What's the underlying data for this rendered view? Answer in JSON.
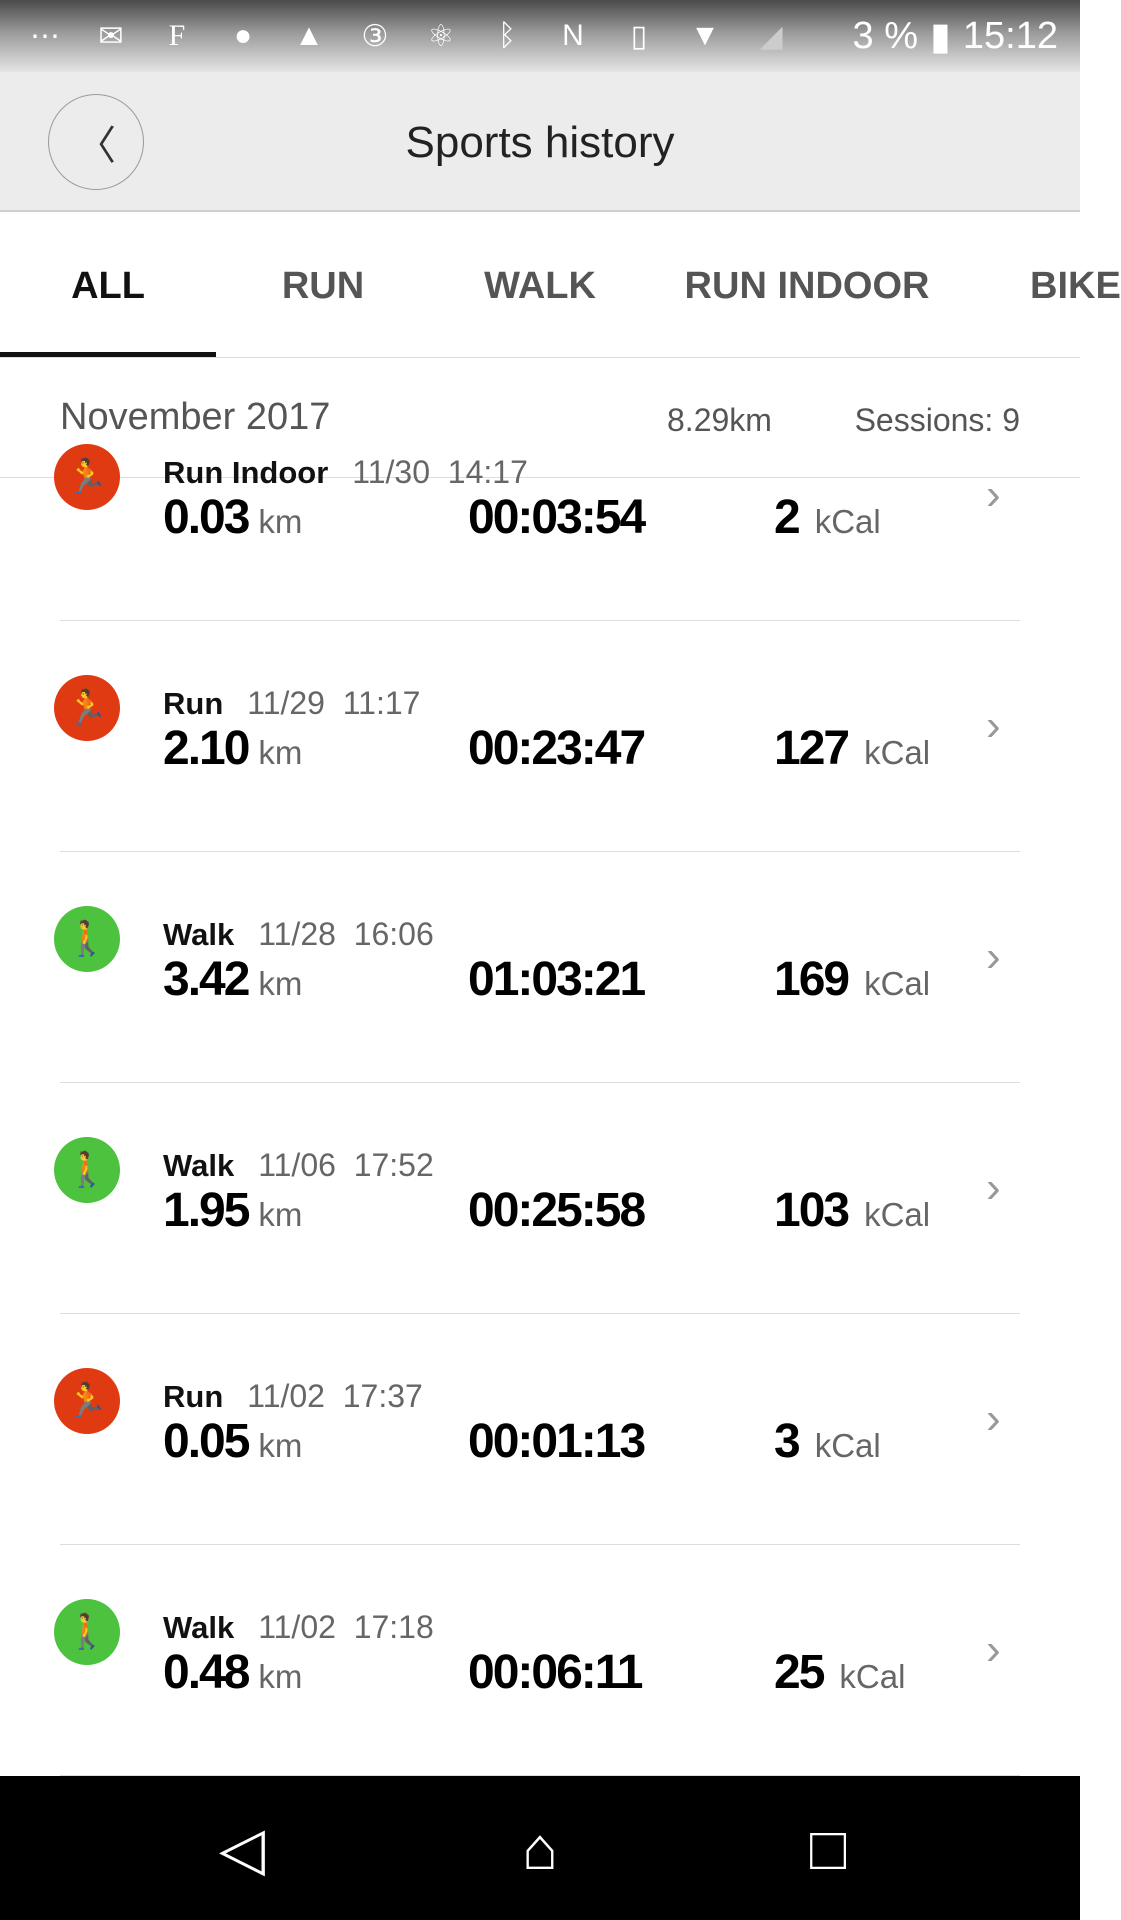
{
  "status_bar": {
    "icons": [
      "messages-icon",
      "mail-icon",
      "f-app-icon",
      "chat-icon",
      "gallery-icon",
      "notification-3-icon",
      "atom-icon",
      "bluetooth-icon",
      "nfc-icon",
      "vibrate-icon",
      "wifi-icon",
      "signal-icon"
    ],
    "battery": "3 %",
    "time": "15:12"
  },
  "header": {
    "title": "Sports history"
  },
  "tabs": [
    "ALL",
    "RUN",
    "WALK",
    "RUN INDOOR",
    "BIKE"
  ],
  "month": {
    "label": "November 2017",
    "distance": "8.29km",
    "sessions": "Sessions: 9"
  },
  "colors": {
    "run": "#e03a12",
    "walk": "#4cc23e"
  },
  "rows": [
    {
      "type": "Run Indoor",
      "date": "11/30",
      "time": "14:17",
      "distance": "0.03",
      "distance_unit": "km",
      "duration": "00:03:54",
      "kcal": "2",
      "kcal_unit": "kCal",
      "icon": "treadmill-icon"
    },
    {
      "type": "Run",
      "date": "11/29",
      "time": "11:17",
      "distance": "2.10",
      "distance_unit": "km",
      "duration": "00:23:47",
      "kcal": "127",
      "kcal_unit": "kCal",
      "icon": "run-icon"
    },
    {
      "type": "Walk",
      "date": "11/28",
      "time": "16:06",
      "distance": "3.42",
      "distance_unit": "km",
      "duration": "01:03:21",
      "kcal": "169",
      "kcal_unit": "kCal",
      "icon": "walk-icon"
    },
    {
      "type": "Walk",
      "date": "11/06",
      "time": "17:52",
      "distance": "1.95",
      "distance_unit": "km",
      "duration": "00:25:58",
      "kcal": "103",
      "kcal_unit": "kCal",
      "icon": "walk-icon"
    },
    {
      "type": "Run",
      "date": "11/02",
      "time": "17:37",
      "distance": "0.05",
      "distance_unit": "km",
      "duration": "00:01:13",
      "kcal": "3",
      "kcal_unit": "kCal",
      "icon": "run-icon"
    },
    {
      "type": "Walk",
      "date": "11/02",
      "time": "17:18",
      "distance": "0.48",
      "distance_unit": "km",
      "duration": "00:06:11",
      "kcal": "25",
      "kcal_unit": "kCal",
      "icon": "walk-icon"
    }
  ]
}
